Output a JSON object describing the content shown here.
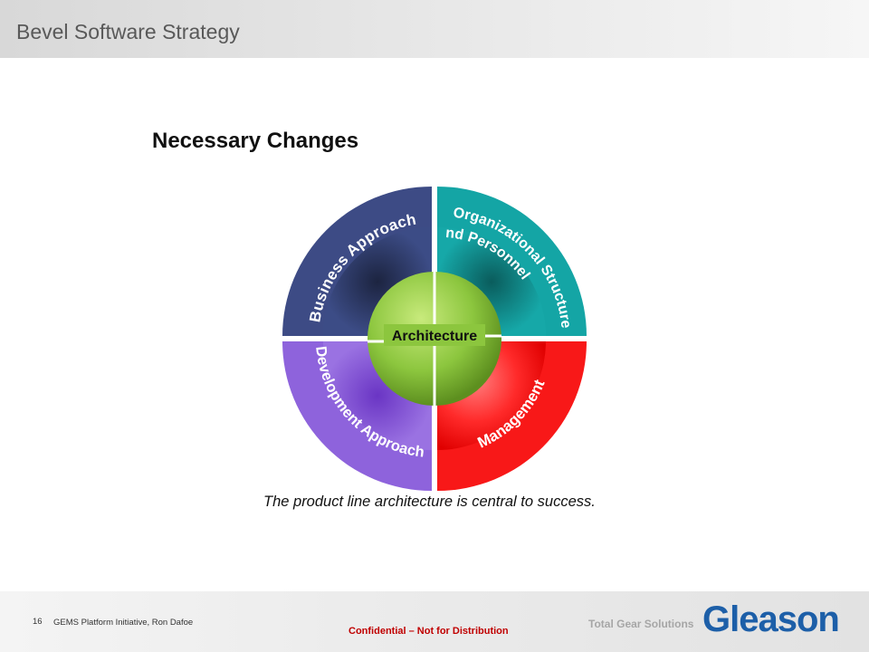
{
  "header": {
    "title": "Bevel Software Strategy"
  },
  "slide": {
    "title": "Necessary Changes",
    "caption": "The product line architecture is central to success."
  },
  "diagram": {
    "center": {
      "label": "Architecture",
      "color": "#7cb342"
    },
    "quadrants": [
      {
        "id": "business",
        "lines": [
          "Business Approach"
        ],
        "color": "#3a4a82"
      },
      {
        "id": "organizational",
        "lines": [
          "Organizational Structure",
          "and Personnel"
        ],
        "color": "#12a3a3"
      },
      {
        "id": "development",
        "lines": [
          "Development Approach"
        ],
        "color": "#8a5fd8"
      },
      {
        "id": "management",
        "lines": [
          "Management"
        ],
        "color": "#f21d1d"
      }
    ]
  },
  "footer": {
    "page_number": "16",
    "text": "GEMS Platform Initiative,  Ron Dafoe",
    "confidential": "Confidential  – Not for Distribution",
    "tagline": "Total Gear Solutions",
    "logo": "Gleason"
  }
}
